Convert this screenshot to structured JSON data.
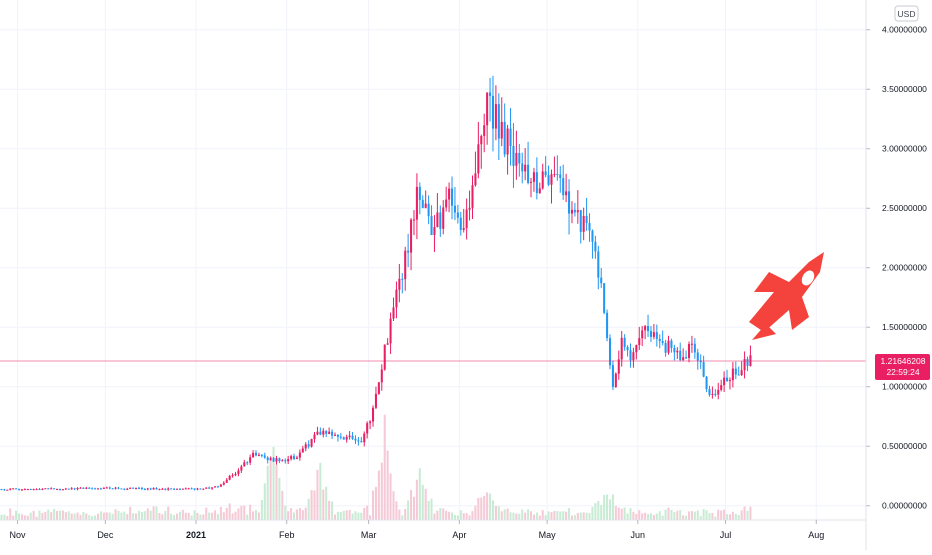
{
  "chart_data": {
    "type": "candlestick",
    "currency_label": "USD",
    "price_axis": {
      "ticks": [
        {
          "value": 4.0,
          "label": "4.00000000"
        },
        {
          "value": 3.5,
          "label": "3.50000000"
        },
        {
          "value": 3.0,
          "label": "3.00000000"
        },
        {
          "value": 2.5,
          "label": "2.50000000"
        },
        {
          "value": 2.0,
          "label": "2.00000000"
        },
        {
          "value": 1.5,
          "label": "1.50000000"
        },
        {
          "value": 1.0,
          "label": "1.00000000"
        },
        {
          "value": 0.5,
          "label": "0.50000000"
        },
        {
          "value": 0.0,
          "label": "0.00000000"
        }
      ],
      "ylim": [
        -0.12,
        4.25
      ]
    },
    "time_axis": {
      "start": "2020-10-26",
      "end": "2021-08-18",
      "ticks": [
        {
          "date": "2020-11-01",
          "label": "Nov",
          "bold": false
        },
        {
          "date": "2020-12-01",
          "label": "Dec",
          "bold": false
        },
        {
          "date": "2021-01-01",
          "label": "2021",
          "bold": true
        },
        {
          "date": "2021-02-01",
          "label": "Feb",
          "bold": false
        },
        {
          "date": "2021-03-01",
          "label": "Mar",
          "bold": false
        },
        {
          "date": "2021-04-01",
          "label": "Apr",
          "bold": false
        },
        {
          "date": "2021-05-01",
          "label": "May",
          "bold": false
        },
        {
          "date": "2021-06-01",
          "label": "Jun",
          "bold": false
        },
        {
          "date": "2021-07-01",
          "label": "Jul",
          "bold": false
        },
        {
          "date": "2021-08-01",
          "label": "Aug",
          "bold": false
        }
      ]
    },
    "close_path": [
      [
        "2020-10-26",
        0.14
      ],
      [
        "2020-11-15",
        0.14
      ],
      [
        "2020-12-01",
        0.15
      ],
      [
        "2020-12-20",
        0.14
      ],
      [
        "2021-01-01",
        0.14
      ],
      [
        "2021-01-08",
        0.16
      ],
      [
        "2021-01-15",
        0.3
      ],
      [
        "2021-01-20",
        0.43
      ],
      [
        "2021-01-27",
        0.38
      ],
      [
        "2021-02-03",
        0.4
      ],
      [
        "2021-02-12",
        0.62
      ],
      [
        "2021-02-20",
        0.57
      ],
      [
        "2021-02-26",
        0.55
      ],
      [
        "2021-03-02",
        0.8
      ],
      [
        "2021-03-06",
        1.3
      ],
      [
        "2021-03-12",
        1.95
      ],
      [
        "2021-03-18",
        2.7
      ],
      [
        "2021-03-22",
        2.3
      ],
      [
        "2021-03-28",
        2.55
      ],
      [
        "2021-04-01",
        2.4
      ],
      [
        "2021-04-05",
        2.6
      ],
      [
        "2021-04-10",
        3.45
      ],
      [
        "2021-04-15",
        3.1
      ],
      [
        "2021-04-20",
        2.9
      ],
      [
        "2021-04-26",
        2.7
      ],
      [
        "2021-05-01",
        2.75
      ],
      [
        "2021-05-05",
        2.7
      ],
      [
        "2021-05-10",
        2.5
      ],
      [
        "2021-05-16",
        2.2
      ],
      [
        "2021-05-20",
        1.7
      ],
      [
        "2021-05-23",
        1.0
      ],
      [
        "2021-05-26",
        1.35
      ],
      [
        "2021-05-29",
        1.2
      ],
      [
        "2021-06-03",
        1.55
      ],
      [
        "2021-06-08",
        1.4
      ],
      [
        "2021-06-14",
        1.25
      ],
      [
        "2021-06-20",
        1.35
      ],
      [
        "2021-06-25",
        0.95
      ],
      [
        "2021-06-28",
        0.97
      ],
      [
        "2021-07-03",
        1.12
      ],
      [
        "2021-07-09",
        1.216
      ]
    ],
    "volume_spikes": [
      [
        "2021-01-27",
        0.17
      ],
      [
        "2021-02-12",
        0.12
      ],
      [
        "2021-03-06",
        0.2
      ],
      [
        "2021-03-18",
        0.13
      ],
      [
        "2021-04-10",
        0.07
      ],
      [
        "2021-05-20",
        0.05
      ]
    ],
    "last_price": {
      "value": 1.21646208,
      "label": "1.21646208",
      "countdown": "22:59:24",
      "color": "#e91e63"
    },
    "colors": {
      "up": "#e91e63",
      "down": "#2196f3",
      "volume_up": "#f5c9d6",
      "volume_down": "#c8ebd4",
      "rocket": "#f4433c"
    },
    "decoration_icon": "rocket-icon"
  }
}
